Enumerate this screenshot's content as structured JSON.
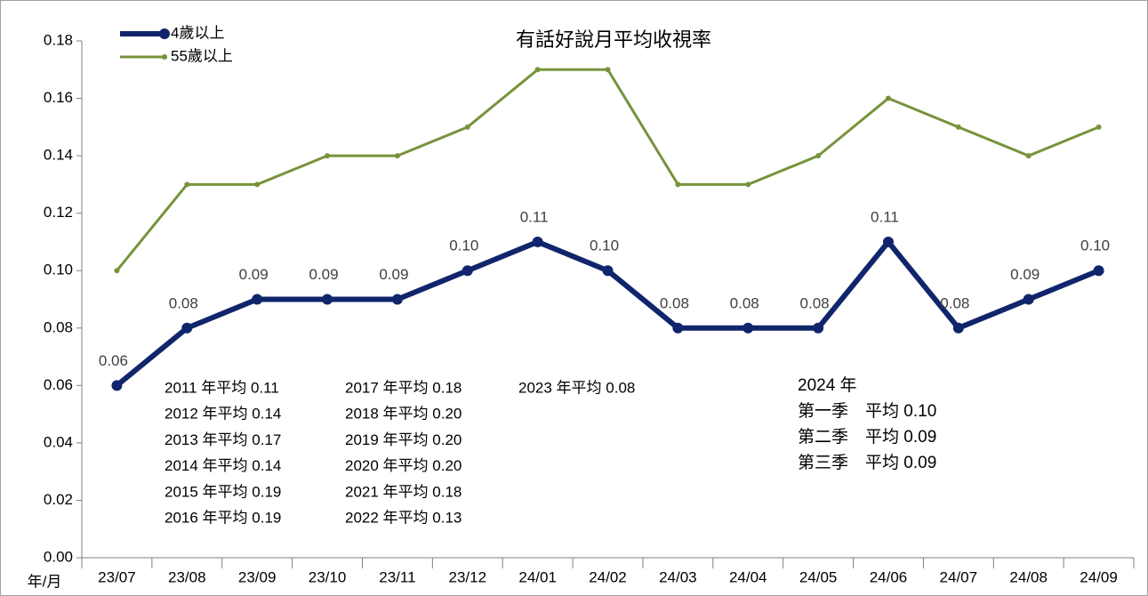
{
  "chart_data": {
    "type": "line",
    "title": "有話好說月平均收視率",
    "x_label": "年/月",
    "categories": [
      "23/07",
      "23/08",
      "23/09",
      "23/10",
      "23/11",
      "23/12",
      "24/01",
      "24/02",
      "24/03",
      "24/04",
      "24/05",
      "24/06",
      "24/07",
      "24/08",
      "24/09"
    ],
    "series": [
      {
        "name": "4歲以上",
        "color": "#10256b",
        "values": [
          0.06,
          0.08,
          0.09,
          0.09,
          0.09,
          0.1,
          0.11,
          0.1,
          0.08,
          0.08,
          0.08,
          0.11,
          0.08,
          0.09,
          0.1
        ],
        "value_labels": [
          "0.06",
          "0.08",
          "0.09",
          "0.09",
          "0.09",
          "0.10",
          "0.11",
          "0.10",
          "0.08",
          "0.08",
          "0.08",
          "0.11",
          "0.08",
          "0.09",
          "0.10"
        ]
      },
      {
        "name": "55歲以上",
        "color": "#77933c",
        "values": [
          0.1,
          0.13,
          0.13,
          0.14,
          0.14,
          0.15,
          0.17,
          0.17,
          0.13,
          0.13,
          0.14,
          0.16,
          0.15,
          0.14,
          0.15
        ]
      }
    ],
    "ylim": [
      0,
      0.18
    ],
    "yticks": [
      {
        "value": 0,
        "label": "0.00"
      },
      {
        "value": 0.02,
        "label": "0.02"
      },
      {
        "value": 0.04,
        "label": "0.04"
      },
      {
        "value": 0.06,
        "label": "0.06"
      },
      {
        "value": 0.08,
        "label": "0.08"
      },
      {
        "value": 0.1,
        "label": "0.10"
      },
      {
        "value": 0.12,
        "label": "0.12"
      },
      {
        "value": 0.14,
        "label": "0.14"
      },
      {
        "value": 0.16,
        "label": "0.16"
      },
      {
        "value": 0.18,
        "label": "0.18"
      }
    ],
    "grid": false,
    "legend": "top-left",
    "annotations": {
      "yearly": [
        [
          "2011 年平均 0.11",
          "2012 年平均 0.14",
          "2013 年平均 0.17",
          "2014 年平均 0.14",
          "2015 年平均 0.19",
          "2016 年平均 0.19"
        ],
        [
          "2017 年平均 0.18",
          "2018 年平均 0.20",
          "2019 年平均 0.20",
          "2020 年平均 0.20",
          "2021 年平均 0.18",
          "2022 年平均 0.13"
        ],
        [
          "2023 年平均 0.08"
        ]
      ],
      "quarterly": [
        "2024 年",
        "第一季　平均 0.10",
        "第二季　平均 0.09",
        "第三季　平均 0.09"
      ]
    }
  }
}
